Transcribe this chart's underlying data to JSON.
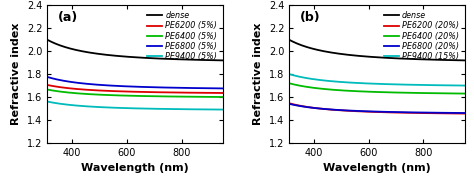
{
  "x_range": [
    310,
    950
  ],
  "ylim": [
    1.2,
    2.4
  ],
  "yticks": [
    1.2,
    1.4,
    1.6,
    1.8,
    2.0,
    2.2,
    2.4
  ],
  "xticks": [
    400,
    600,
    800
  ],
  "xlabel": "Wavelength (nm)",
  "ylabel": "Refractive index",
  "panel_a": {
    "label": "(a)",
    "curves": [
      {
        "name": "dense",
        "color": "#000000",
        "n0": 2.1,
        "n1": 1.92
      },
      {
        "name": "PE6200 (5%)",
        "color": "#dd0000",
        "n0": 1.705,
        "n1": 1.635
      },
      {
        "name": "PE6400 (5%)",
        "color": "#00bb00",
        "n0": 1.665,
        "n1": 1.6
      },
      {
        "name": "PE6800 (5%)",
        "color": "#0000cc",
        "n0": 1.775,
        "n1": 1.675
      },
      {
        "name": "PE9400 (5%)",
        "color": "#00bbbb",
        "n0": 1.56,
        "n1": 1.49
      }
    ]
  },
  "panel_b": {
    "label": "(b)",
    "curves": [
      {
        "name": "dense",
        "color": "#000000",
        "n0": 2.1,
        "n1": 1.92
      },
      {
        "name": "PE6200 (20%)",
        "color": "#dd0000",
        "n0": 1.545,
        "n1": 1.455
      },
      {
        "name": "PE6400 (20%)",
        "color": "#00bb00",
        "n0": 1.72,
        "n1": 1.63
      },
      {
        "name": "PE6800 (20%)",
        "color": "#0000cc",
        "n0": 1.54,
        "n1": 1.46
      },
      {
        "name": "PE9400 (15%)",
        "color": "#00bbbb",
        "n0": 1.8,
        "n1": 1.7
      }
    ]
  },
  "linewidth": 1.3,
  "legend_fontsize": 5.8,
  "tick_fontsize": 7,
  "axis_label_fontsize": 8,
  "panel_label_fontsize": 9
}
